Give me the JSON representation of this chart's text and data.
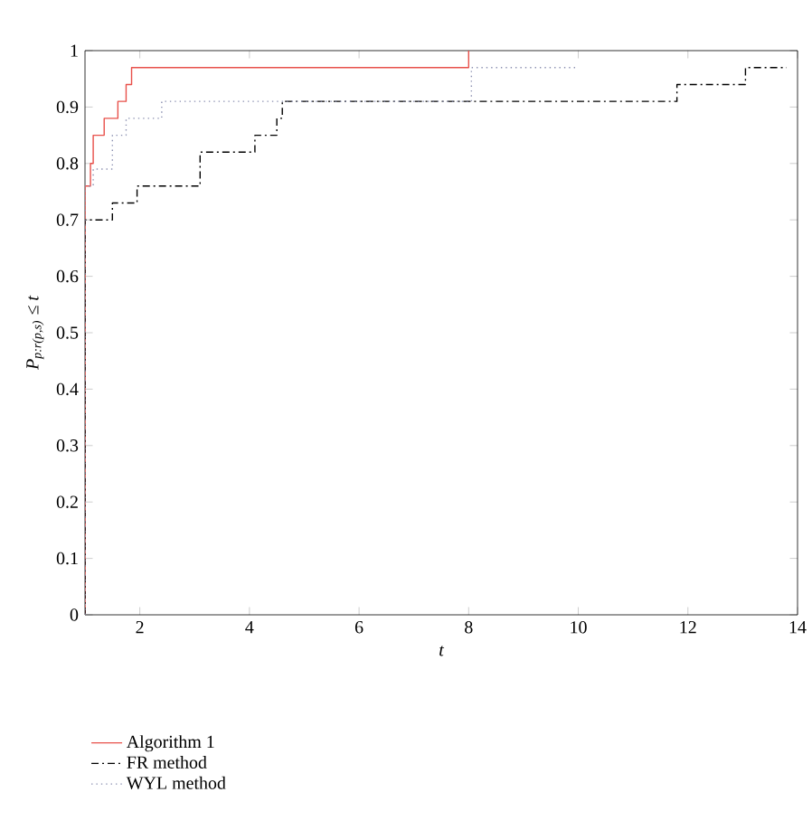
{
  "chart_data": {
    "type": "step",
    "xlabel": "t",
    "ylabel": "P$_{p:r(p,s)}$ ≤ t",
    "xlim": [
      1,
      14
    ],
    "ylim": [
      0,
      1
    ],
    "xticks": [
      2,
      4,
      6,
      8,
      10,
      12,
      14
    ],
    "yticks": [
      0,
      0.1,
      0.2,
      0.3,
      0.4,
      0.5,
      0.6,
      0.7,
      0.8,
      0.9,
      1
    ],
    "grid": false,
    "legend": "bottom",
    "marker": "none",
    "series": [
      {
        "name": "Algorithm 1",
        "color": "#e8504a",
        "line_style": "solid",
        "x": [
          1,
          1,
          1.1,
          1.15,
          1.35,
          1.6,
          1.75,
          1.85,
          8,
          8
        ],
        "values": [
          0,
          0.76,
          0.8,
          0.85,
          0.88,
          0.91,
          0.94,
          0.97,
          0.97,
          1
        ]
      },
      {
        "name": "FR method",
        "color": "#000000",
        "line_style": "dashed",
        "x": [
          1,
          1,
          1.5,
          1.95,
          3.1,
          4.1,
          4.5,
          4.6,
          11.8,
          13.05,
          13.8
        ],
        "values": [
          0,
          0.7,
          0.73,
          0.76,
          0.82,
          0.85,
          0.88,
          0.91,
          0.94,
          0.97,
          0.97
        ]
      },
      {
        "name": "WYL method",
        "color": "#8a8fb0",
        "line_style": "dotted",
        "x": [
          1,
          1,
          1.15,
          1.5,
          1.75,
          2.4,
          8,
          8.05,
          10
        ],
        "values": [
          0,
          0.76,
          0.79,
          0.85,
          0.88,
          0.91,
          0.91,
          0.97,
          0.97
        ]
      }
    ]
  }
}
